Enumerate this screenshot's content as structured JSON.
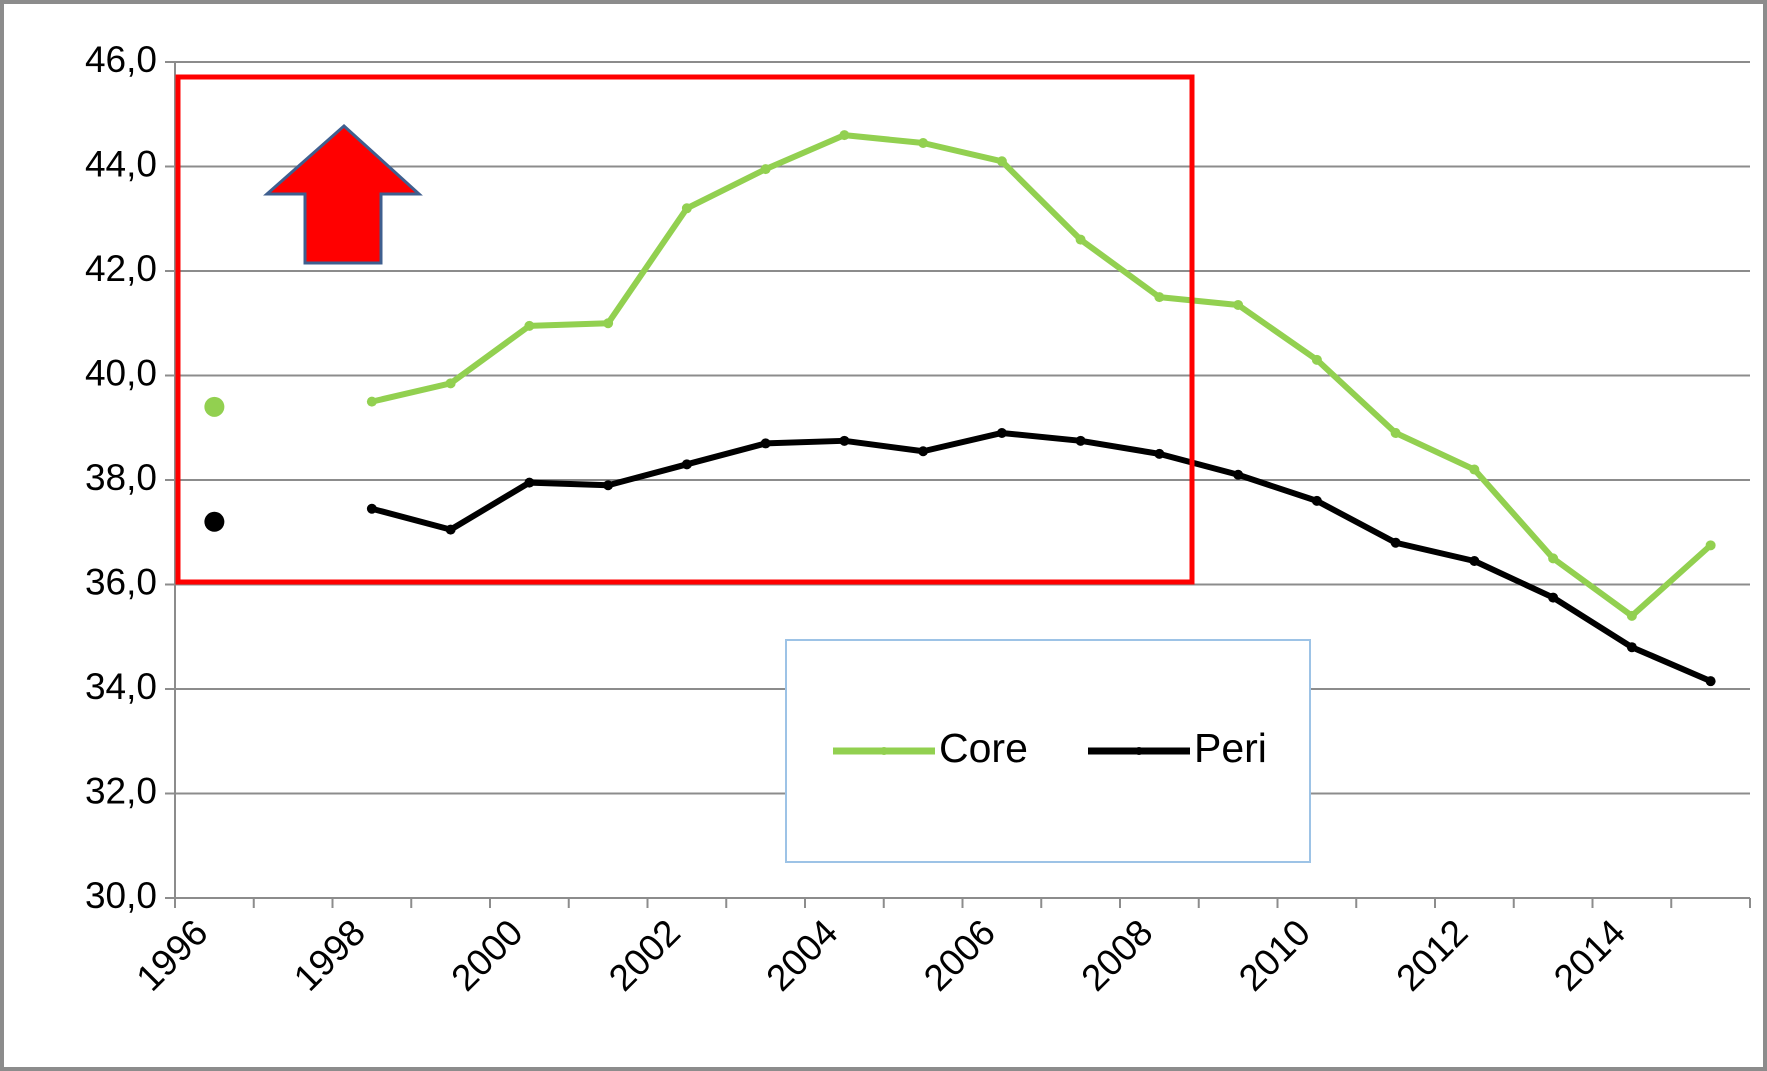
{
  "chart_data": {
    "type": "line",
    "categories": [
      "1996",
      null,
      "1998",
      null,
      "2000",
      null,
      "2002",
      null,
      "2004",
      null,
      "2006",
      null,
      "2008",
      null,
      "2010",
      null,
      "2012",
      null,
      "2014",
      null
    ],
    "series": [
      {
        "name": "Core",
        "color": "#92d050",
        "values": [
          39.4,
          null,
          39.5,
          39.85,
          40.95,
          41.0,
          43.2,
          43.95,
          44.6,
          44.45,
          44.1,
          42.6,
          41.5,
          41.35,
          40.3,
          38.9,
          38.2,
          36.5,
          35.4,
          36.75
        ]
      },
      {
        "name": "Peri",
        "color": "#000000",
        "values": [
          37.2,
          null,
          37.45,
          37.05,
          37.95,
          37.9,
          38.3,
          38.7,
          38.75,
          38.55,
          38.9,
          38.75,
          38.5,
          38.1,
          37.6,
          36.8,
          36.45,
          35.75,
          34.8,
          34.15
        ]
      }
    ],
    "ylim": [
      30,
      46
    ],
    "yticks": [
      {
        "value": 30,
        "label": "30,0"
      },
      {
        "value": 32,
        "label": "32,0"
      },
      {
        "value": 34,
        "label": "34,0"
      },
      {
        "value": 36,
        "label": "36,0"
      },
      {
        "value": 38,
        "label": "38,0"
      },
      {
        "value": 40,
        "label": "40,0"
      },
      {
        "value": 42,
        "label": "42,0"
      },
      {
        "value": 44,
        "label": "44,0"
      },
      {
        "value": 46,
        "label": "46,0"
      }
    ],
    "grid": true
  }
}
